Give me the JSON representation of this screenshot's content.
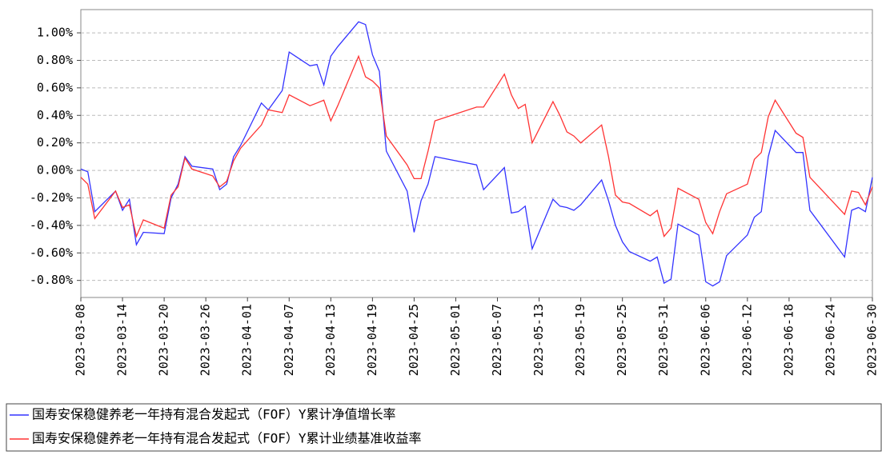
{
  "chart_data": {
    "type": "line",
    "x": [
      "2023-03-08",
      "2023-03-09",
      "2023-03-10",
      "2023-03-13",
      "2023-03-14",
      "2023-03-15",
      "2023-03-16",
      "2023-03-17",
      "2023-03-20",
      "2023-03-21",
      "2023-03-22",
      "2023-03-23",
      "2023-03-24",
      "2023-03-27",
      "2023-03-28",
      "2023-03-29",
      "2023-03-30",
      "2023-03-31",
      "2023-04-03",
      "2023-04-04",
      "2023-04-06",
      "2023-04-07",
      "2023-04-10",
      "2023-04-11",
      "2023-04-12",
      "2023-04-13",
      "2023-04-14",
      "2023-04-17",
      "2023-04-18",
      "2023-04-19",
      "2023-04-20",
      "2023-04-21",
      "2023-04-24",
      "2023-04-25",
      "2023-04-26",
      "2023-04-27",
      "2023-04-28",
      "2023-05-04",
      "2023-05-05",
      "2023-05-08",
      "2023-05-09",
      "2023-05-10",
      "2023-05-11",
      "2023-05-12",
      "2023-05-15",
      "2023-05-16",
      "2023-05-17",
      "2023-05-18",
      "2023-05-19",
      "2023-05-22",
      "2023-05-23",
      "2023-05-24",
      "2023-05-25",
      "2023-05-26",
      "2023-05-29",
      "2023-05-30",
      "2023-05-31",
      "2023-06-01",
      "2023-06-02",
      "2023-06-05",
      "2023-06-06",
      "2023-06-07",
      "2023-06-08",
      "2023-06-09",
      "2023-06-12",
      "2023-06-13",
      "2023-06-14",
      "2023-06-15",
      "2023-06-16",
      "2023-06-19",
      "2023-06-20",
      "2023-06-21",
      "2023-06-26",
      "2023-06-27",
      "2023-06-28",
      "2023-06-29",
      "2023-06-30"
    ],
    "series": [
      {
        "name": "国寿安保稳健养老一年持有混合发起式（FOF）Y累计净值增长率",
        "color": "#3333ff",
        "values": [
          0.01,
          -0.01,
          -0.3,
          -0.15,
          -0.29,
          -0.21,
          -0.54,
          -0.45,
          -0.46,
          -0.2,
          -0.1,
          0.1,
          0.03,
          0.01,
          -0.14,
          -0.1,
          0.1,
          0.18,
          0.49,
          0.44,
          0.58,
          0.86,
          0.76,
          0.77,
          0.62,
          0.83,
          0.9,
          1.08,
          1.06,
          0.84,
          0.72,
          0.14,
          -0.15,
          -0.45,
          -0.22,
          -0.1,
          0.1,
          0.04,
          -0.14,
          0.02,
          -0.31,
          -0.3,
          -0.26,
          -0.57,
          -0.21,
          -0.26,
          -0.27,
          -0.29,
          -0.25,
          -0.07,
          -0.22,
          -0.4,
          -0.52,
          -0.59,
          -0.66,
          -0.63,
          -0.82,
          -0.79,
          -0.39,
          -0.47,
          -0.81,
          -0.84,
          -0.81,
          -0.62,
          -0.47,
          -0.34,
          -0.3,
          0.1,
          0.29,
          0.13,
          0.13,
          -0.29,
          -0.63,
          -0.29,
          -0.27,
          -0.3,
          -0.05
        ]
      },
      {
        "name": "国寿安保稳健养老一年持有混合发起式（FOF）Y累计业绩基准收益率",
        "color": "#ff3333",
        "values": [
          -0.05,
          -0.1,
          -0.35,
          -0.15,
          -0.27,
          -0.25,
          -0.48,
          -0.36,
          -0.42,
          -0.18,
          -0.12,
          0.09,
          0.01,
          -0.04,
          -0.12,
          -0.08,
          0.07,
          0.16,
          0.33,
          0.44,
          0.42,
          0.55,
          0.47,
          0.49,
          0.51,
          0.36,
          0.47,
          0.83,
          0.68,
          0.65,
          0.6,
          0.25,
          0.04,
          -0.06,
          -0.06,
          0.14,
          0.36,
          0.46,
          0.46,
          0.7,
          0.55,
          0.45,
          0.48,
          0.2,
          0.5,
          0.4,
          0.28,
          0.25,
          0.2,
          0.33,
          0.1,
          -0.18,
          -0.23,
          -0.24,
          -0.33,
          -0.29,
          -0.48,
          -0.42,
          -0.13,
          -0.21,
          -0.38,
          -0.46,
          -0.3,
          -0.17,
          -0.1,
          0.08,
          0.13,
          0.39,
          0.51,
          0.27,
          0.24,
          -0.05,
          -0.32,
          -0.15,
          -0.16,
          -0.25,
          -0.12
        ]
      }
    ],
    "xlim": [
      "2023-03-08",
      "2023-06-30"
    ],
    "xticks": [
      "2023-03-08",
      "2023-03-14",
      "2023-03-20",
      "2023-03-26",
      "2023-04-01",
      "2023-04-07",
      "2023-04-13",
      "2023-04-19",
      "2023-04-25",
      "2023-05-01",
      "2023-05-07",
      "2023-05-13",
      "2023-05-19",
      "2023-05-25",
      "2023-05-31",
      "2023-06-06",
      "2023-06-12",
      "2023-06-18",
      "2023-06-24",
      "2023-06-30"
    ],
    "ylim": [
      -0.924,
      1.169
    ],
    "yticks": [
      {
        "value": -0.8,
        "label": "-0.80%"
      },
      {
        "value": -0.6,
        "label": "-0.60%"
      },
      {
        "value": -0.4,
        "label": "-0.40%"
      },
      {
        "value": -0.2,
        "label": "-0.20%"
      },
      {
        "value": 0,
        "label": "0.00%"
      },
      {
        "value": 0.2,
        "label": "0.20%"
      },
      {
        "value": 0.4,
        "label": "0.40%"
      },
      {
        "value": 0.6,
        "label": "0.60%"
      },
      {
        "value": 0.8,
        "label": "0.80%"
      },
      {
        "value": 1,
        "label": "1.00%"
      }
    ],
    "grid": true,
    "legend": "bottom"
  }
}
